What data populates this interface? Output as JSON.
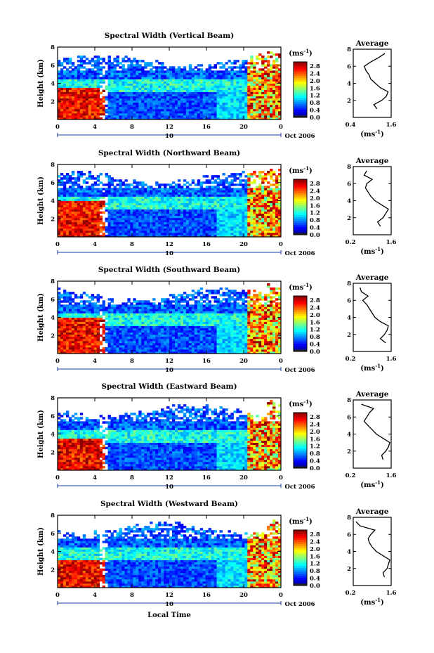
{
  "figure": {
    "x_axis_label": "Local Time",
    "colorbar_unit_base": "(ms",
    "colorbar_unit_exp": "-1",
    "colorbar_unit_close": ")",
    "average_title": "Average",
    "average_xlabel_base": "(ms",
    "average_xlabel_exp": "-1",
    "average_xlabel_close": ")",
    "date_day": "10",
    "date_month_year": "Oct 2006",
    "height_label": "Height (km)"
  },
  "chart_data": [
    {
      "type": "heatmap",
      "title": "Spectral Width (Vertical Beam)",
      "xlabel": "",
      "ylabel": "Height (km)",
      "xlim": [
        0,
        24
      ],
      "ylim": [
        0,
        8
      ],
      "xticks": [
        "0",
        "4",
        "8",
        "12",
        "16",
        "20",
        "0"
      ],
      "yticks": [
        "2",
        "4",
        "6",
        "8"
      ],
      "colorbar": {
        "range": [
          0,
          2.8
        ],
        "ticks": [
          "2.8",
          "2.4",
          "2.0",
          "1.6",
          "1.2",
          "0.8",
          "0.4",
          "0.0"
        ]
      },
      "profile": {
        "type": "line",
        "title": "Average",
        "xlim": [
          0.4,
          1.6
        ],
        "xticks": [
          "0.4",
          "1.6"
        ],
        "yticks": [
          "2",
          "4",
          "6",
          "8"
        ],
        "height_km": [
          1.0,
          1.5,
          2.0,
          2.5,
          3.0,
          3.5,
          4.0,
          4.5,
          5.0,
          5.5,
          6.0,
          6.5,
          7.0,
          7.5
        ],
        "values": [
          1.15,
          1.05,
          1.3,
          1.45,
          1.5,
          1.25,
          1.1,
          0.95,
          0.9,
          0.8,
          0.75,
          0.95,
          1.2,
          1.4
        ]
      }
    },
    {
      "type": "heatmap",
      "title": "Spectral Width (Northward Beam)",
      "xlabel": "",
      "ylabel": "Height (km)",
      "xlim": [
        0,
        24
      ],
      "ylim": [
        0,
        8
      ],
      "xticks": [
        "0",
        "4",
        "8",
        "12",
        "16",
        "20",
        "0"
      ],
      "yticks": [
        "2",
        "4",
        "6",
        "8"
      ],
      "colorbar": {
        "range": [
          0,
          2.8
        ],
        "ticks": [
          "2.8",
          "2.4",
          "2.0",
          "1.6",
          "1.2",
          "0.8",
          "0.4",
          "0.0"
        ]
      },
      "profile": {
        "type": "line",
        "title": "Average",
        "xlim": [
          0.2,
          1.6
        ],
        "xticks": [
          "0.2",
          "1.6"
        ],
        "yticks": [
          "2",
          "4",
          "6",
          "8"
        ],
        "height_km": [
          1.0,
          1.5,
          2.0,
          2.5,
          3.0,
          3.5,
          4.0,
          4.5,
          5.0,
          5.5,
          6.0,
          6.5,
          7.0,
          7.5
        ],
        "values": [
          1.2,
          1.1,
          1.3,
          1.4,
          1.5,
          1.25,
          1.0,
          0.85,
          0.75,
          0.65,
          0.7,
          0.9,
          0.6,
          0.7
        ]
      }
    },
    {
      "type": "heatmap",
      "title": "Spectral Width (Southward Beam)",
      "xlabel": "",
      "ylabel": "Height (km)",
      "xlim": [
        0,
        24
      ],
      "ylim": [
        0,
        8
      ],
      "xticks": [
        "0",
        "4",
        "8",
        "12",
        "16",
        "20",
        "0"
      ],
      "yticks": [
        "2",
        "4",
        "6",
        "8"
      ],
      "colorbar": {
        "range": [
          0,
          2.8
        ],
        "ticks": [
          "2.8",
          "2.4",
          "2.0",
          "1.6",
          "1.2",
          "0.8",
          "0.4",
          "0.0"
        ]
      },
      "profile": {
        "type": "line",
        "title": "Average",
        "xlim": [
          0.2,
          1.6
        ],
        "xticks": [
          "0.2",
          "1.6"
        ],
        "yticks": [
          "2",
          "4",
          "6",
          "8"
        ],
        "height_km": [
          1.0,
          1.5,
          2.0,
          2.5,
          3.0,
          3.5,
          4.0,
          4.5,
          5.0,
          5.5,
          6.0,
          6.5,
          7.0,
          7.5
        ],
        "values": [
          1.4,
          1.2,
          1.35,
          1.45,
          1.5,
          1.2,
          1.0,
          0.9,
          0.8,
          0.7,
          0.55,
          0.75,
          0.5,
          0.45
        ]
      }
    },
    {
      "type": "heatmap",
      "title": "Spectral Width (Eastward Beam)",
      "xlabel": "",
      "ylabel": "Height (km)",
      "xlim": [
        0,
        24
      ],
      "ylim": [
        0,
        8
      ],
      "xticks": [
        "0",
        "4",
        "8",
        "12",
        "16",
        "20",
        "0"
      ],
      "yticks": [
        "2",
        "4",
        "6",
        "8"
      ],
      "colorbar": {
        "range": [
          0,
          2.8
        ],
        "ticks": [
          "2.8",
          "2.4",
          "2.0",
          "1.6",
          "1.2",
          "0.8",
          "0.4",
          "0.0"
        ]
      },
      "profile": {
        "type": "line",
        "title": "Average",
        "xlim": [
          0.2,
          1.6
        ],
        "xticks": [
          "0.2",
          "1.6"
        ],
        "yticks": [
          "2",
          "4",
          "6",
          "8"
        ],
        "height_km": [
          1.0,
          1.5,
          2.0,
          2.5,
          3.0,
          3.5,
          4.0,
          4.5,
          5.0,
          5.5,
          6.0,
          6.5,
          7.0,
          7.5
        ],
        "values": [
          1.3,
          1.25,
          1.4,
          1.5,
          1.55,
          1.3,
          1.05,
          0.9,
          0.75,
          0.6,
          0.7,
          0.8,
          0.95,
          0.5
        ]
      }
    },
    {
      "type": "heatmap",
      "title": "Spectral Width (Westward Beam)",
      "xlabel": "Local Time",
      "ylabel": "Height (km)",
      "xlim": [
        0,
        24
      ],
      "ylim": [
        0,
        8
      ],
      "xticks": [
        "0",
        "4",
        "8",
        "12",
        "16",
        "20",
        "0"
      ],
      "yticks": [
        "2",
        "4",
        "6",
        "8"
      ],
      "colorbar": {
        "range": [
          0,
          2.8
        ],
        "ticks": [
          "2.8",
          "2.4",
          "2.0",
          "1.6",
          "1.2",
          "0.8",
          "0.4",
          "0.0"
        ]
      },
      "profile": {
        "type": "line",
        "title": "Average",
        "xlim": [
          0.2,
          1.6
        ],
        "xticks": [
          "0.2",
          "1.6"
        ],
        "yticks": [
          "2",
          "4",
          "6",
          "8"
        ],
        "height_km": [
          1.0,
          1.5,
          2.0,
          2.5,
          3.0,
          3.5,
          4.0,
          4.5,
          5.0,
          5.5,
          6.0,
          6.5,
          7.0,
          7.5
        ],
        "values": [
          1.35,
          1.3,
          1.45,
          1.5,
          1.55,
          1.3,
          1.05,
          0.9,
          0.8,
          0.75,
          0.85,
          1.0,
          0.45,
          0.3
        ]
      }
    }
  ]
}
